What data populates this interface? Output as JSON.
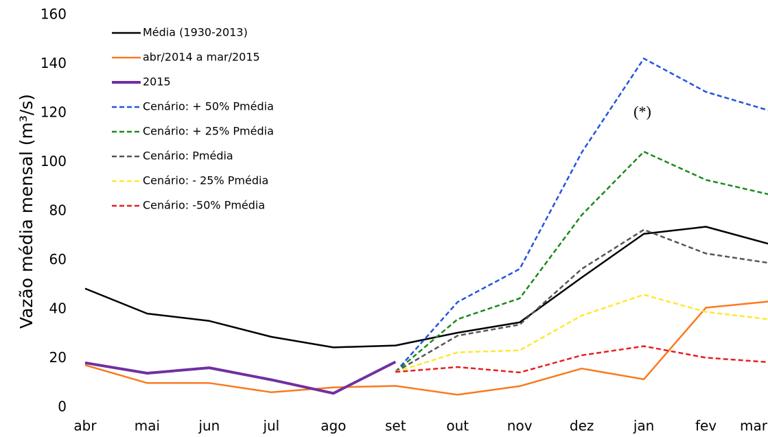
{
  "chart_data": {
    "type": "line",
    "y_label": "Vazão média mensal (m³/s)",
    "annotation": "(*)",
    "categories": [
      "abr",
      "mai",
      "jun",
      "jul",
      "ago",
      "set",
      "out",
      "nov",
      "dez",
      "jan",
      "fev",
      "mar"
    ],
    "ylim": [
      0,
      160
    ],
    "yticks": [
      0,
      20,
      40,
      60,
      80,
      100,
      120,
      140,
      160
    ],
    "grid": false,
    "legend": "upper-left",
    "series": [
      {
        "name": "Média (1930-2013)",
        "color": "#000000",
        "dashed": false,
        "line_width": 2.5,
        "values": [
          48.5,
          38.3,
          35.3,
          28.8,
          24.5,
          25.3,
          30.5,
          34.7,
          53,
          70.8,
          73.7,
          66.8
        ]
      },
      {
        "name": "abr/2014 a mar/2015",
        "color": "#f97a1f",
        "dashed": false,
        "line_width": 2.5,
        "values": [
          17.3,
          10,
          10,
          6.2,
          8.2,
          8.8,
          5.2,
          8.7,
          15.9,
          11.5,
          40.7,
          43.2
        ]
      },
      {
        "name": "2015",
        "color": "#7030a0",
        "dashed": false,
        "line_width": 4,
        "values": [
          18.2,
          14,
          16.2,
          11.3,
          5.8,
          18.6,
          null,
          null,
          null,
          null,
          null,
          null
        ]
      },
      {
        "name": "Cenário: + 50% Pmédia",
        "color": "#2255e0",
        "dashed": true,
        "line_width": 2.5,
        "values": [
          null,
          null,
          null,
          null,
          null,
          14.5,
          43,
          56.5,
          104,
          142.3,
          128.7,
          121.2
        ]
      },
      {
        "name": "Cenário: + 25% Pmédia",
        "color": "#1a8a1a",
        "dashed": true,
        "line_width": 2.5,
        "values": [
          null,
          null,
          null,
          null,
          null,
          14.5,
          36,
          44.5,
          78.5,
          104.3,
          92.8,
          87
        ]
      },
      {
        "name": "Cenário: Pmédia",
        "color": "#555555",
        "dashed": true,
        "line_width": 2.5,
        "values": [
          null,
          null,
          null,
          null,
          null,
          14.5,
          29.3,
          33.8,
          56.5,
          72.5,
          62.8,
          59
        ]
      },
      {
        "name": "Cenário: - 25% Pmédia",
        "color": "#ffe82c",
        "dashed": true,
        "line_width": 2.5,
        "values": [
          null,
          null,
          null,
          null,
          null,
          14.5,
          22.5,
          23.3,
          37.5,
          46,
          39,
          36
        ]
      },
      {
        "name": "Cenário: -50% Pmédia",
        "color": "#e81e1e",
        "dashed": true,
        "line_width": 2.5,
        "values": [
          null,
          null,
          null,
          null,
          null,
          14.5,
          16.5,
          14.3,
          21.3,
          25,
          20.3,
          18.5
        ]
      }
    ]
  }
}
